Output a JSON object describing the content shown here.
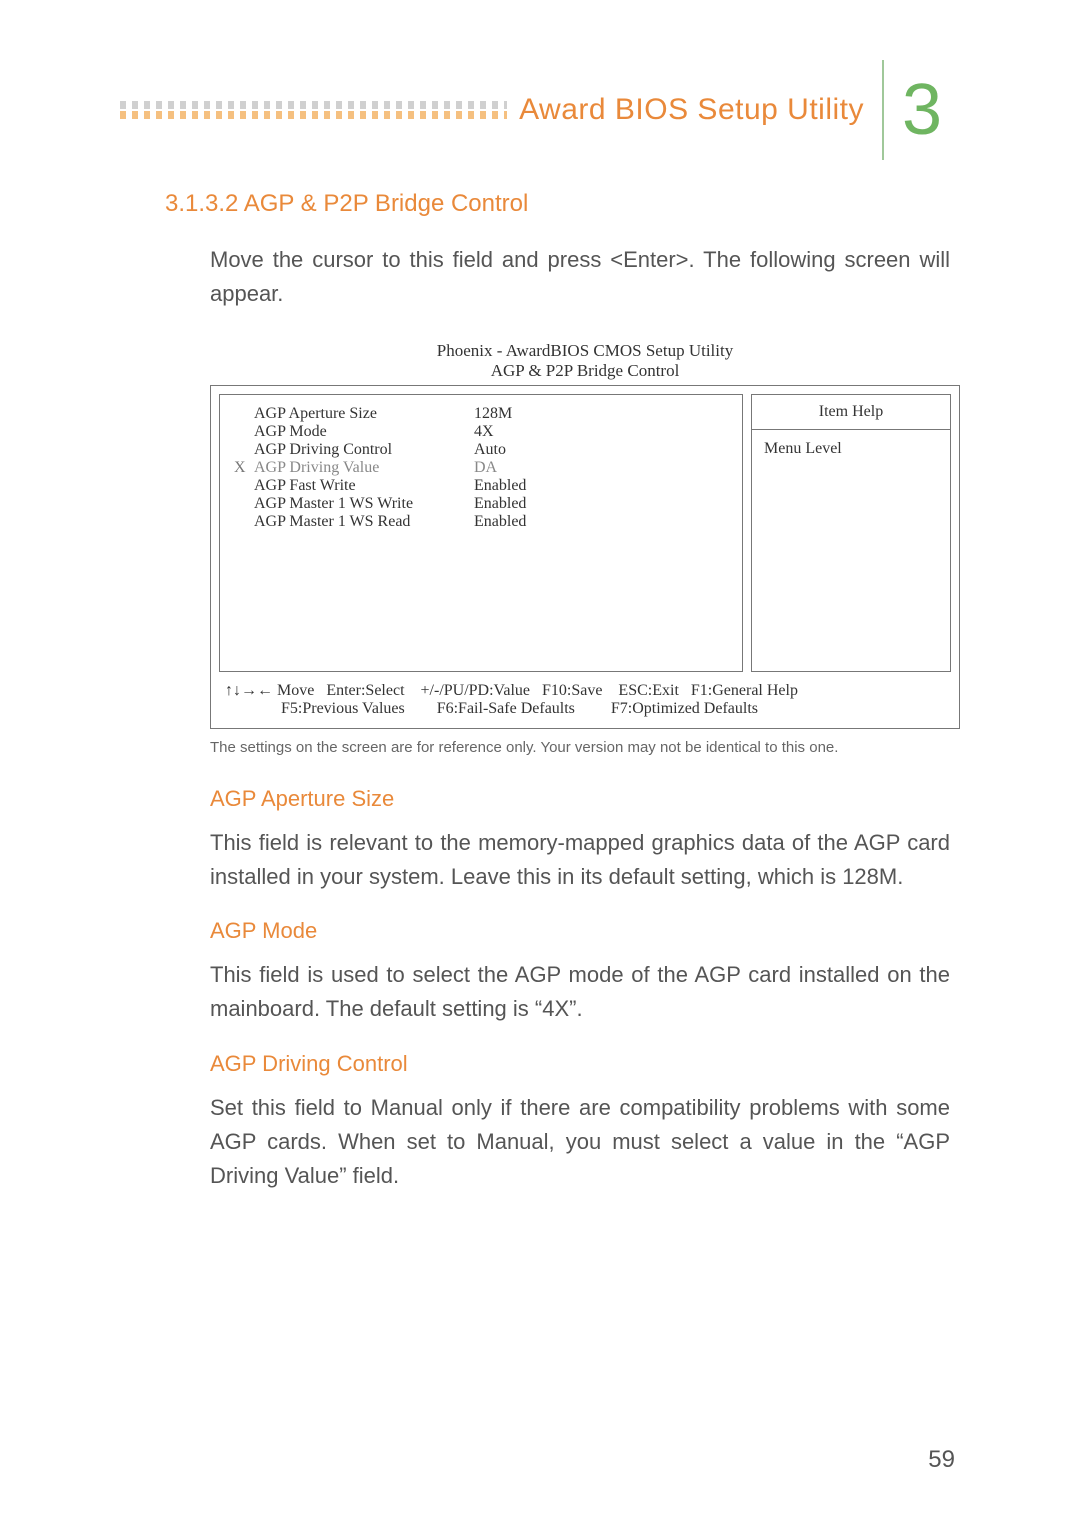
{
  "page_number": "59",
  "header": {
    "title": "Award BIOS Setup Utility",
    "chapter": "3",
    "chapter_color": "#6fb561",
    "title_color": "#e9893a"
  },
  "section": {
    "number_title": "3.1.3.2  AGP & P2P Bridge Control",
    "intro": "Move the cursor to this field and press <Enter>. The following screen will appear."
  },
  "bios": {
    "title1": "Phoenix - AwardBIOS CMOS Setup Utility",
    "title2": "AGP & P2P Bridge Control",
    "rows": [
      {
        "marker": "",
        "label": "AGP Aperture Size",
        "value": "128M"
      },
      {
        "marker": "",
        "label": "AGP Mode",
        "value": "4X"
      },
      {
        "marker": "",
        "label": "AGP Driving Control",
        "value": "Auto"
      },
      {
        "marker": "X",
        "label": "AGP Driving Value",
        "value": "DA"
      },
      {
        "marker": "",
        "label": "AGP Fast Write",
        "value": "Enabled"
      },
      {
        "marker": "",
        "label": "AGP Master 1 WS Write",
        "value": "Enabled"
      },
      {
        "marker": "",
        "label": "AGP Master 1 WS Read",
        "value": "Enabled"
      }
    ],
    "help_title": "Item Help",
    "menu_level": "Menu Level",
    "footer1": "↑↓→← Move   Enter:Select    +/-/PU/PD:Value   F10:Save    ESC:Exit   F1:General Help",
    "footer2": "              F5:Previous Values        F6:Fail-Safe Defaults         F7:Optimized Defaults",
    "caption": "The settings on the screen are for reference only. Your version may not be identical to this one."
  },
  "subs": {
    "s1_title": "AGP Aperture Size",
    "s1_body": "This field is relevant to the memory-mapped graphics data of the AGP card installed in your system. Leave this in its default setting, which is 128M.",
    "s2_title": "AGP Mode",
    "s2_body": "This field is used to select the AGP mode of the AGP card installed on the mainboard. The default setting is “4X”.",
    "s3_title": "AGP Driving Control",
    "s3_body": "Set this field to Manual only if there are compatibility problems with some AGP cards. When set to Manual, you must select a value in the “AGP Driving Value” field."
  }
}
